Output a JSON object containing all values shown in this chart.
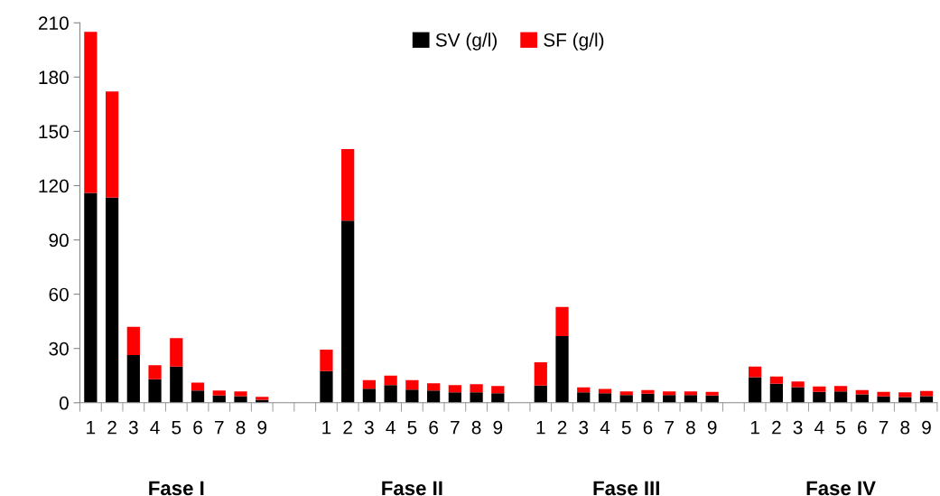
{
  "chart_data": {
    "type": "bar",
    "stacked": true,
    "categories": [
      "1",
      "2",
      "3",
      "4",
      "5",
      "6",
      "7",
      "8",
      "9",
      null,
      null,
      "1",
      "2",
      "3",
      "4",
      "5",
      "6",
      "7",
      "8",
      "9",
      null,
      "1",
      "2",
      "3",
      "4",
      "5",
      "6",
      "7",
      "8",
      "9",
      null,
      "1",
      "2",
      "3",
      "4",
      "5",
      "6",
      "7",
      "8",
      "9"
    ],
    "series": [
      {
        "name": "SV (g/l)",
        "color": "#000000",
        "values": [
          116,
          113.4,
          26.3,
          13,
          20,
          6.7,
          4,
          3.7,
          1.7,
          null,
          null,
          17.5,
          100.6,
          7.8,
          9.8,
          7.2,
          6.7,
          5.7,
          5.7,
          5.3,
          null,
          9.5,
          36.9,
          5.8,
          5.2,
          4.3,
          5,
          4.3,
          4.3,
          4,
          null,
          14.1,
          10.5,
          8.6,
          6,
          6.3,
          4.7,
          3.5,
          3.2,
          3.7
        ]
      },
      {
        "name": "SF (g/l)",
        "color": "#ff0000",
        "values": [
          89,
          58.6,
          15.7,
          7.8,
          15.7,
          4.4,
          2.7,
          2.6,
          1.6,
          null,
          null,
          11.9,
          39.6,
          4.7,
          5.2,
          5.3,
          4.1,
          4.1,
          4.6,
          4,
          null,
          12.9,
          16,
          2.7,
          2.4,
          2,
          2,
          2,
          2,
          2,
          null,
          5.9,
          4,
          3.2,
          3,
          3,
          2.3,
          2.5,
          2.6,
          2.8
        ]
      }
    ],
    "ylim": [
      0,
      210
    ],
    "yticks": [
      0,
      30,
      60,
      90,
      120,
      150,
      180,
      210
    ],
    "grid": false,
    "legend": "top",
    "annotations": [
      "Fase I",
      "Fase II",
      "Fase III",
      "Fase IV"
    ]
  }
}
